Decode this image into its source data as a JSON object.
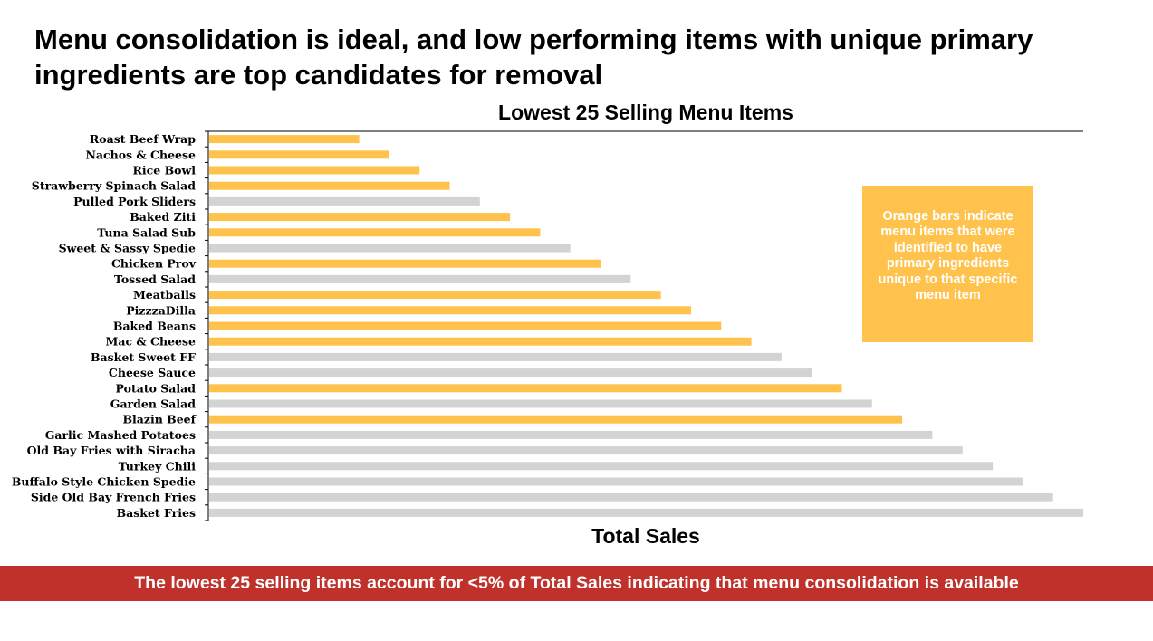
{
  "slide": {
    "title": "Menu consolidation is ideal, and low performing items with unique primary ingredients are top candidates for removal",
    "note": "Orange bars indicate menu items that were identified to have primary ingredients unique to that specific menu item",
    "footer": "The lowest 25 selling items account for <5% of Total Sales indicating that menu consolidation is available"
  },
  "colors": {
    "highlight": "#ffc34d",
    "other": "#d3d3d3",
    "banner": "#c0312b"
  },
  "chart_data": {
    "type": "bar",
    "orientation": "horizontal",
    "title": "Lowest 25 Selling Menu Items",
    "xlabel": "Total Sales",
    "ylabel": "",
    "xlim": [
      0,
      29
    ],
    "x_tick_labels_shown": false,
    "grid": false,
    "categories": [
      "Roast Beef Wrap",
      "Nachos & Cheese",
      "Rice Bowl",
      "Strawberry Spinach Salad",
      "Pulled Pork Sliders",
      "Baked Ziti",
      "Tuna Salad Sub",
      "Sweet & Sassy Spedie",
      "Chicken Prov",
      "Tossed Salad",
      "Meatballs",
      "PizzzaDilla",
      "Baked Beans",
      "Mac & Cheese",
      "Basket Sweet FF",
      "Cheese Sauce",
      "Potato Salad",
      "Garden Salad",
      "Blazin Beef",
      "Garlic Mashed Potatoes",
      "Old Bay Fries with Siracha",
      "Turkey Chili",
      "Buffalo Style Chicken Spedie",
      "Side Old Bay French Fries",
      "Basket Fries"
    ],
    "values": [
      5,
      6,
      7,
      8,
      9,
      10,
      11,
      12,
      13,
      14,
      15,
      16,
      17,
      18,
      19,
      20,
      21,
      22,
      23,
      24,
      25,
      26,
      27,
      28,
      29
    ],
    "unique_ingredient": [
      true,
      true,
      true,
      true,
      false,
      true,
      true,
      false,
      true,
      false,
      true,
      true,
      true,
      true,
      false,
      false,
      true,
      false,
      true,
      false,
      false,
      false,
      false,
      false,
      false
    ]
  }
}
